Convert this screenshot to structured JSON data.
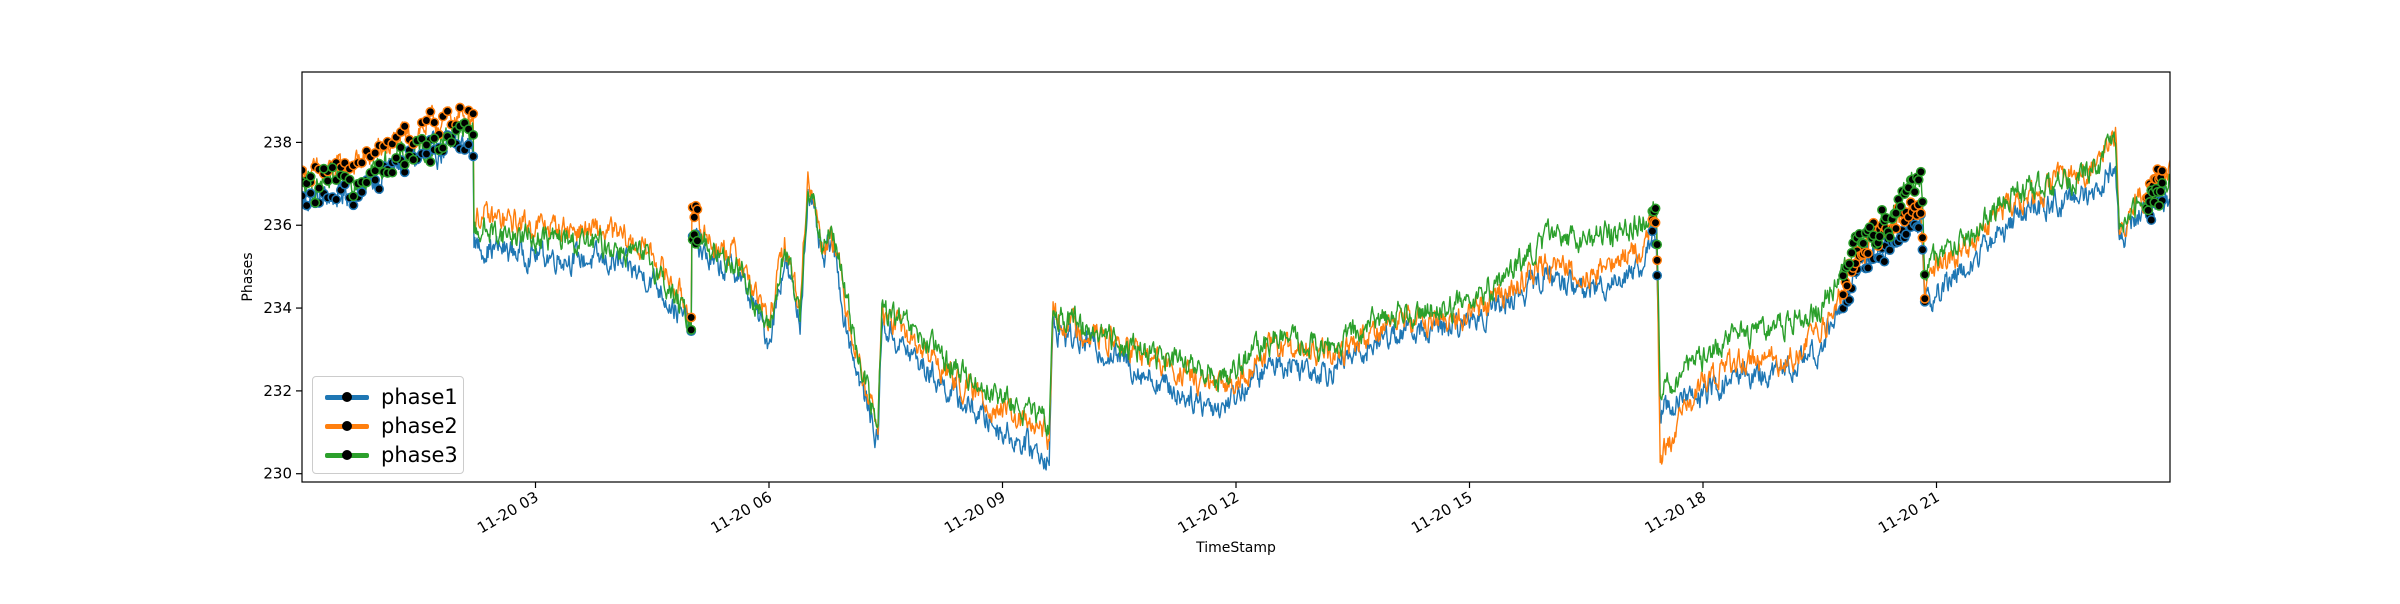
{
  "chart_data": {
    "type": "line",
    "title": "",
    "xlabel": "TimeStamp",
    "ylabel": "Phases",
    "x_range": [
      "2023-11-20 00:00",
      "2023-11-20 24:00"
    ],
    "xtick_labels": [
      "11-20 03",
      "11-20 06",
      "11-20 09",
      "11-20 12",
      "11-20 15",
      "11-20 18",
      "11-20 21"
    ],
    "xtick_hours": [
      3,
      6,
      9,
      12,
      15,
      18,
      21
    ],
    "ylim": [
      229.8,
      239.7
    ],
    "yticks": [
      230,
      232,
      234,
      236,
      238
    ],
    "legend_position": "lower left",
    "grid": false,
    "series": [
      {
        "name": "phase1",
        "color": "#1f77b4",
        "points": [
          [
            0.0,
            236.6
          ],
          [
            0.4,
            236.7
          ],
          [
            0.8,
            236.9
          ],
          [
            1.2,
            237.4
          ],
          [
            1.6,
            237.7
          ],
          [
            2.0,
            237.9
          ],
          [
            2.2,
            238.0
          ],
          [
            2.21,
            235.5
          ],
          [
            3.0,
            235.3
          ],
          [
            4.0,
            235.1
          ],
          [
            4.5,
            234.7
          ],
          [
            5.0,
            233.5
          ],
          [
            5.01,
            235.7
          ],
          [
            5.3,
            235.0
          ],
          [
            5.6,
            234.9
          ],
          [
            6.0,
            233.2
          ],
          [
            6.2,
            235.2
          ],
          [
            6.4,
            233.6
          ],
          [
            6.5,
            236.9
          ],
          [
            6.7,
            235.0
          ],
          [
            6.8,
            235.7
          ],
          [
            7.0,
            233.5
          ],
          [
            7.2,
            232.0
          ],
          [
            7.4,
            230.8
          ],
          [
            7.45,
            233.6
          ],
          [
            7.8,
            232.9
          ],
          [
            8.5,
            231.7
          ],
          [
            9.2,
            230.8
          ],
          [
            9.6,
            230.4
          ],
          [
            9.65,
            233.5
          ],
          [
            10.5,
            232.8
          ],
          [
            11.2,
            232.0
          ],
          [
            11.8,
            231.6
          ],
          [
            12.5,
            232.7
          ],
          [
            13.2,
            232.5
          ],
          [
            14.0,
            233.4
          ],
          [
            14.8,
            233.5
          ],
          [
            15.5,
            234.2
          ],
          [
            16.0,
            234.8
          ],
          [
            16.5,
            234.4
          ],
          [
            17.2,
            235.0
          ],
          [
            17.4,
            235.8
          ],
          [
            17.45,
            231.6
          ],
          [
            18.0,
            231.9
          ],
          [
            18.5,
            232.4
          ],
          [
            19.0,
            232.4
          ],
          [
            19.5,
            233.0
          ],
          [
            20.0,
            235.0
          ],
          [
            20.4,
            235.6
          ],
          [
            20.8,
            236.2
          ],
          [
            20.85,
            234.0
          ],
          [
            21.0,
            234.4
          ],
          [
            21.5,
            235.2
          ],
          [
            22.0,
            236.2
          ],
          [
            22.5,
            236.5
          ],
          [
            23.0,
            236.8
          ],
          [
            23.3,
            237.5
          ],
          [
            23.35,
            235.5
          ],
          [
            23.6,
            236.3
          ],
          [
            24.0,
            236.7
          ]
        ]
      },
      {
        "name": "phase2",
        "color": "#ff7f0e",
        "points": [
          [
            0.0,
            237.2
          ],
          [
            0.4,
            237.3
          ],
          [
            0.8,
            237.6
          ],
          [
            1.2,
            238.0
          ],
          [
            1.6,
            238.4
          ],
          [
            2.0,
            238.6
          ],
          [
            2.2,
            238.7
          ],
          [
            2.21,
            236.2
          ],
          [
            3.0,
            236.0
          ],
          [
            4.0,
            235.8
          ],
          [
            4.5,
            235.3
          ],
          [
            5.0,
            233.9
          ],
          [
            5.01,
            236.2
          ],
          [
            5.3,
            235.5
          ],
          [
            5.6,
            235.3
          ],
          [
            6.0,
            233.6
          ],
          [
            6.2,
            235.6
          ],
          [
            6.4,
            234.0
          ],
          [
            6.5,
            237.3
          ],
          [
            6.7,
            235.4
          ],
          [
            6.8,
            236.0
          ],
          [
            7.0,
            234.0
          ],
          [
            7.2,
            232.4
          ],
          [
            7.4,
            231.2
          ],
          [
            7.45,
            233.9
          ],
          [
            7.8,
            233.3
          ],
          [
            8.5,
            232.1
          ],
          [
            9.2,
            231.3
          ],
          [
            9.6,
            230.9
          ],
          [
            9.65,
            233.8
          ],
          [
            10.5,
            233.1
          ],
          [
            11.2,
            232.5
          ],
          [
            11.8,
            232.0
          ],
          [
            12.5,
            233.1
          ],
          [
            13.2,
            232.8
          ],
          [
            14.0,
            233.7
          ],
          [
            14.8,
            233.7
          ],
          [
            15.5,
            234.4
          ],
          [
            16.0,
            235.1
          ],
          [
            16.5,
            234.8
          ],
          [
            17.2,
            235.4
          ],
          [
            17.4,
            236.3
          ],
          [
            17.45,
            230.4
          ],
          [
            18.0,
            232.2
          ],
          [
            18.5,
            232.8
          ],
          [
            19.0,
            232.7
          ],
          [
            19.5,
            233.3
          ],
          [
            20.0,
            235.3
          ],
          [
            20.4,
            235.9
          ],
          [
            20.8,
            236.6
          ],
          [
            20.85,
            234.6
          ],
          [
            21.0,
            234.9
          ],
          [
            21.5,
            235.7
          ],
          [
            22.0,
            236.6
          ],
          [
            22.5,
            237.0
          ],
          [
            23.0,
            237.4
          ],
          [
            23.3,
            238.3
          ],
          [
            23.35,
            235.9
          ],
          [
            23.6,
            236.7
          ],
          [
            24.0,
            237.3
          ]
        ]
      },
      {
        "name": "phase3",
        "color": "#2ca02c",
        "points": [
          [
            0.0,
            236.9
          ],
          [
            0.4,
            237.0
          ],
          [
            0.8,
            237.2
          ],
          [
            1.2,
            237.6
          ],
          [
            1.6,
            237.9
          ],
          [
            2.0,
            238.2
          ],
          [
            2.2,
            238.3
          ],
          [
            2.21,
            235.9
          ],
          [
            3.0,
            235.7
          ],
          [
            4.0,
            235.5
          ],
          [
            4.5,
            235.1
          ],
          [
            5.0,
            233.6
          ],
          [
            5.01,
            236.0
          ],
          [
            5.3,
            235.3
          ],
          [
            5.6,
            235.1
          ],
          [
            6.0,
            233.4
          ],
          [
            6.2,
            235.4
          ],
          [
            6.4,
            233.8
          ],
          [
            6.5,
            237.1
          ],
          [
            6.7,
            235.3
          ],
          [
            6.8,
            236.0
          ],
          [
            7.0,
            234.2
          ],
          [
            7.2,
            232.5
          ],
          [
            7.4,
            231.0
          ],
          [
            7.45,
            234.0
          ],
          [
            7.8,
            233.5
          ],
          [
            8.5,
            232.4
          ],
          [
            9.2,
            231.6
          ],
          [
            9.6,
            231.2
          ],
          [
            9.65,
            233.9
          ],
          [
            10.5,
            233.2
          ],
          [
            11.2,
            232.7
          ],
          [
            11.8,
            232.3
          ],
          [
            12.5,
            233.3
          ],
          [
            13.2,
            233.0
          ],
          [
            14.0,
            233.9
          ],
          [
            14.8,
            234.0
          ],
          [
            15.5,
            234.8
          ],
          [
            16.0,
            235.7
          ],
          [
            16.5,
            235.7
          ],
          [
            17.2,
            236.0
          ],
          [
            17.4,
            236.4
          ],
          [
            17.45,
            232.0
          ],
          [
            18.0,
            232.8
          ],
          [
            18.5,
            233.4
          ],
          [
            19.0,
            233.6
          ],
          [
            19.5,
            234.0
          ],
          [
            20.0,
            235.6
          ],
          [
            20.4,
            236.2
          ],
          [
            20.8,
            237.2
          ],
          [
            20.85,
            234.9
          ],
          [
            21.0,
            235.2
          ],
          [
            21.5,
            235.9
          ],
          [
            22.0,
            236.8
          ],
          [
            22.5,
            237.0
          ],
          [
            23.0,
            237.3
          ],
          [
            23.3,
            238.0
          ],
          [
            23.35,
            235.7
          ],
          [
            23.6,
            236.4
          ],
          [
            24.0,
            237.1
          ]
        ]
      }
    ],
    "marker_ranges_hours": [
      [
        0.0,
        2.2
      ],
      [
        5.0,
        5.08
      ],
      [
        17.35,
        17.42
      ],
      [
        19.8,
        20.85
      ],
      [
        23.7,
        23.9
      ]
    ],
    "marker_style": "black dot with series-colored edge"
  }
}
